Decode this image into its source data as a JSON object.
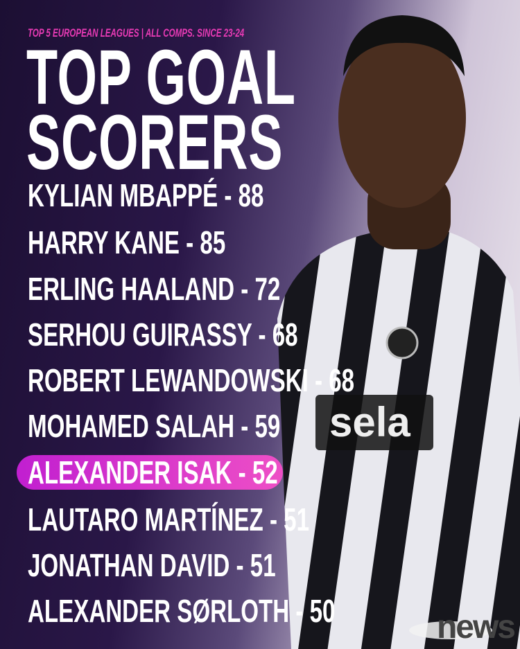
{
  "subtitle": "TOP 5 EUROPEAN LEAGUES | ALL COMPS. SINCE 23-24",
  "title": {
    "line1": "TOP GOAL",
    "line2": "SCORERS"
  },
  "scorers": [
    {
      "text": "KYLIAN MBAPPÉ - 88"
    },
    {
      "text": "HARRY KANE - 85"
    },
    {
      "text": "ERLING HAALAND - 72"
    },
    {
      "text": "SERHOU GUIRASSY - 68"
    },
    {
      "text": "ROBERT LEWANDOWSKI - 68"
    },
    {
      "text": "MOHAMED SALAH - 59"
    },
    {
      "text": "ALEXANDER ISAK - 52",
      "highlighted": true
    },
    {
      "text": "LAUTARO MARTÍNEZ - 51"
    },
    {
      "text": "JONATHAN DAVID - 51"
    },
    {
      "text": "ALEXANDER SØRLOTH - 50"
    }
  ],
  "jersey_sponsor": "sela",
  "watermark": "news",
  "colors": {
    "accent": "#e83ab5",
    "highlight": "#c11fd0",
    "background": "#1c0f33"
  }
}
